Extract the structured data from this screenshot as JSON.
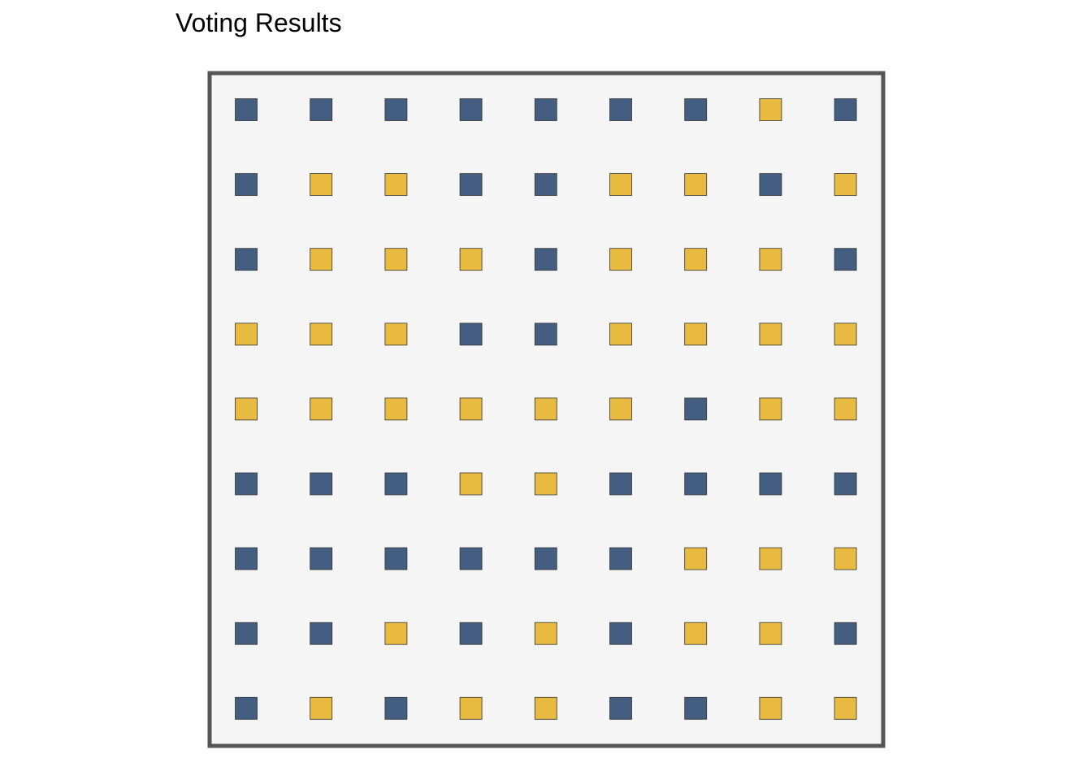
{
  "chart_data": {
    "type": "heatmap",
    "title": "Voting Results",
    "xlabel": "",
    "ylabel": "",
    "rows": 9,
    "cols": 9,
    "categories": [
      "A",
      "B"
    ],
    "colors": {
      "A": "#435e80",
      "B": "#e8bb40",
      "panel_background": "#f5f5f5",
      "panel_border": "#555555",
      "cell_outline": "#333333"
    },
    "grid": [
      [
        "A",
        "A",
        "A",
        "A",
        "A",
        "A",
        "A",
        "B",
        "A"
      ],
      [
        "A",
        "B",
        "B",
        "A",
        "A",
        "B",
        "B",
        "A",
        "B"
      ],
      [
        "A",
        "B",
        "B",
        "B",
        "A",
        "B",
        "B",
        "B",
        "A"
      ],
      [
        "B",
        "B",
        "B",
        "A",
        "A",
        "B",
        "B",
        "B",
        "B"
      ],
      [
        "B",
        "B",
        "B",
        "B",
        "B",
        "B",
        "A",
        "B",
        "B"
      ],
      [
        "A",
        "A",
        "A",
        "B",
        "B",
        "A",
        "A",
        "A",
        "A"
      ],
      [
        "A",
        "A",
        "A",
        "A",
        "A",
        "A",
        "B",
        "B",
        "B"
      ],
      [
        "A",
        "A",
        "B",
        "A",
        "B",
        "A",
        "B",
        "B",
        "A"
      ],
      [
        "A",
        "B",
        "A",
        "B",
        "B",
        "A",
        "A",
        "B",
        "B"
      ]
    ],
    "grid_lines": false,
    "legend": "none"
  }
}
